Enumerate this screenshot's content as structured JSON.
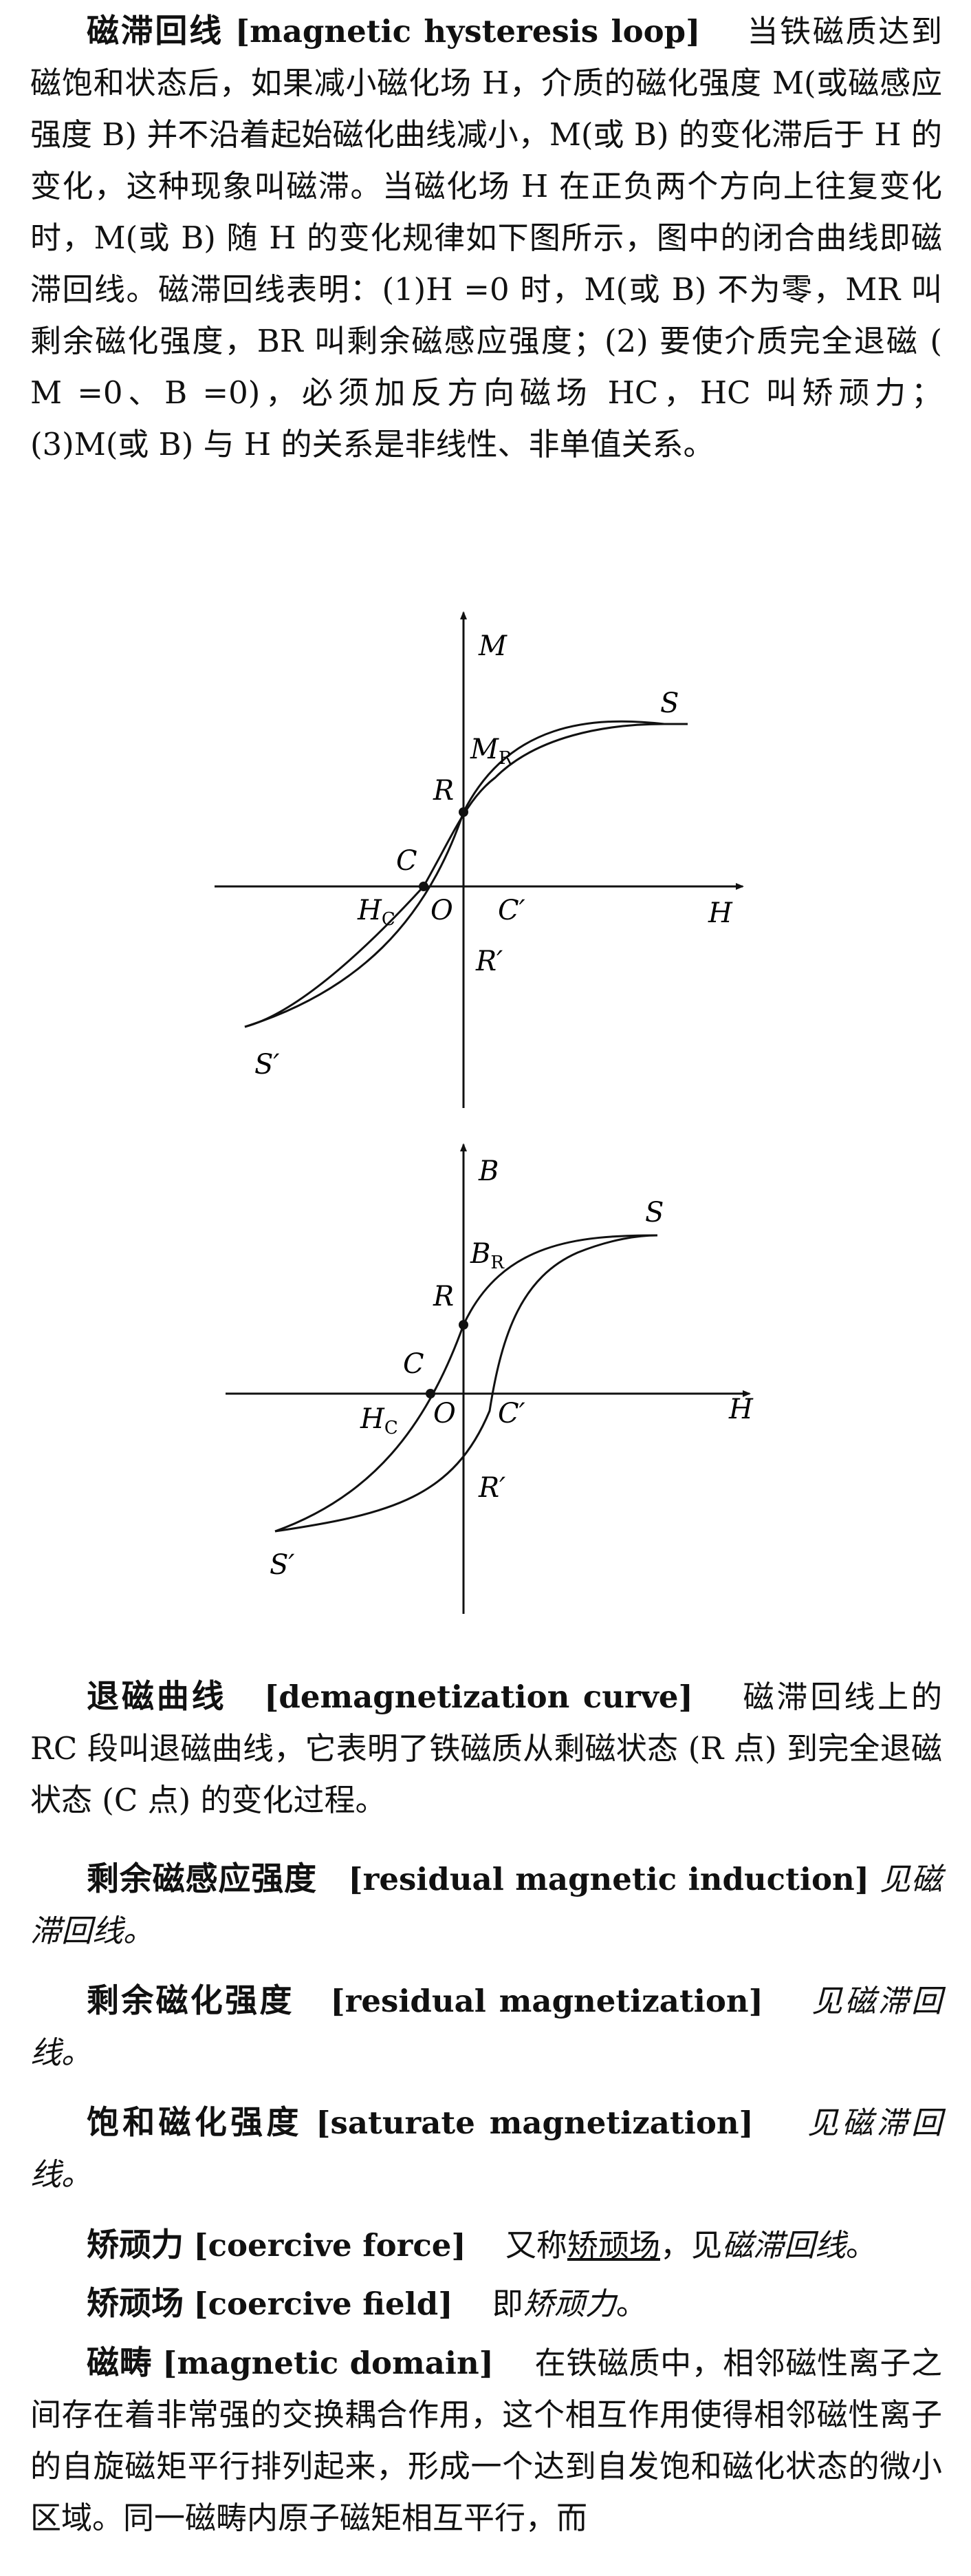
{
  "entries": {
    "hysteresis": {
      "term": "磁滞回线",
      "english": "[magnetic hysteresis loop]",
      "body": "当铁磁质达到磁饱和状态后，如果减小磁化场 H，介质的磁化强度 M(或磁感应强度 B) 并不沿着起始磁化曲线减小，M(或 B) 的变化滞后于 H 的变化，这种现象叫磁滞。当磁化场 H 在正负两个方向上往复变化时，M(或 B) 随 H 的变化规律如下图所示，图中的闭合曲线即磁滞回线。磁滞回线表明：(1)H =0 时，M(或 B) 不为零，MR 叫剩余磁化强度，BR 叫剩余磁感应强度；(2) 要使介质完全退磁 ( M =0、B =0)，必须加反方向磁场 HC，HC 叫矫顽力；(3)M(或 B) 与 H 的关系是非线性、非单值关系。"
    },
    "demag": {
      "term": "退磁曲线",
      "english": "[demagnetization curve]",
      "body": "磁滞回线上的 RC 段叫退磁曲线，它表明了铁磁质从剩磁状态 (R 点) 到完全退磁状态 (C 点) 的变化过程。"
    },
    "residual_induction": {
      "term": "剩余磁感应强度",
      "english": "[residual magnetic induction]",
      "body": "见磁滞回线。"
    },
    "residual_magnetization": {
      "term": "剩余磁化强度",
      "english": "[residual magnetization]",
      "body": "见磁滞回线。"
    },
    "saturate": {
      "term": "饱和磁化强度",
      "english": "[saturate magnetization]",
      "body": "见磁滞回线。"
    },
    "coercive_force": {
      "term": "矫顽力",
      "english": "[coercive force]",
      "body_prefix": "又称",
      "body_link": "矫顽场",
      "body_mid": "，见",
      "body_ref": "磁滞回线",
      "body_end": "。"
    },
    "coercive_field": {
      "term": "矫顽场",
      "english": "[coercive field]",
      "body_prefix": "即",
      "body_ref": "矫顽力",
      "body_end": "。"
    },
    "domain": {
      "term": "磁畴",
      "english": "[magnetic domain]",
      "body": "在铁磁质中，相邻磁性离子之间存在着非常强的交换耦合作用，这个相互作用使得相邻磁性离子的自旋磁矩平行排列起来，形成一个达到自发饱和磁化状态的微小区域。同一磁畴内原子磁矩相互平行，而"
    }
  },
  "figures": [
    {
      "y_axis": "M",
      "x_axis": "H",
      "remanence": "M",
      "remanence_sub": "R",
      "coercive": "H",
      "coercive_sub": "C",
      "points": {
        "S": "S",
        "S_neg": "S′",
        "R": "R",
        "R_neg": "R′",
        "C": "C",
        "C_neg": "C′",
        "O": "O"
      }
    },
    {
      "y_axis": "B",
      "x_axis": "H",
      "remanence": "B",
      "remanence_sub": "R",
      "coercive": "H",
      "coercive_sub": "C",
      "points": {
        "S": "S",
        "S_neg": "S′",
        "R": "R",
        "R_neg": "R′",
        "C": "C",
        "C_neg": "C′",
        "O": "O"
      }
    }
  ]
}
